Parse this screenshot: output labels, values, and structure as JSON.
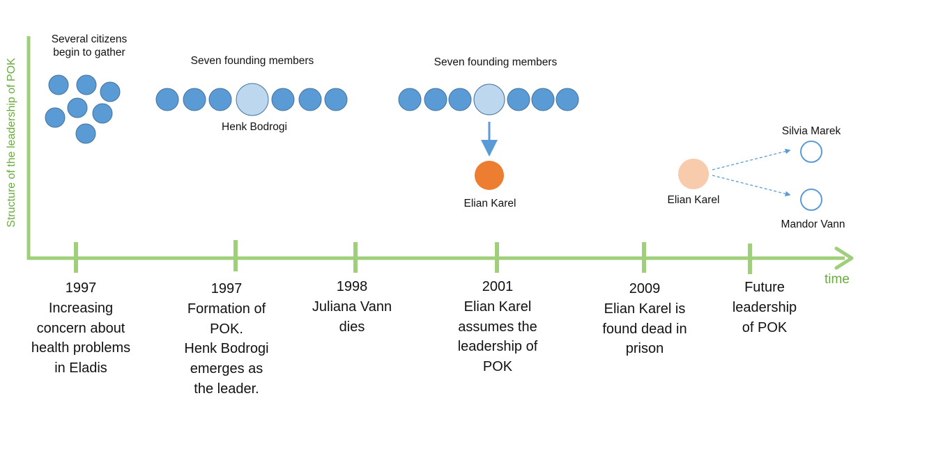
{
  "axis": {
    "y_label": "Structure of the leadership of POK",
    "x_label": "time"
  },
  "annotations": {
    "citizens": "Several citizens\nbegin to gather",
    "founders_1": "Seven founding members",
    "founders_2": "Seven founding members",
    "henk": "Henk Bodrogi",
    "elian_1": "Elian Karel",
    "elian_2": "Elian Karel",
    "silvia": "Silvia Marek",
    "mandor": "Mandor Vann"
  },
  "timeline": [
    {
      "year": "1997",
      "text": "Increasing\nconcern about\nhealth problems\nin Eladis"
    },
    {
      "year": "1997",
      "text": "Formation of\nPOK.\nHenk Bodrogi\nemerges as\nthe leader."
    },
    {
      "year": "1998",
      "text": "Juliana Vann\ndies"
    },
    {
      "year": "2001",
      "text": "Elian Karel\nassumes the\nleadership of\nPOK"
    },
    {
      "year": "2009",
      "text": "Elian Karel is\nfound dead in\nprison"
    },
    {
      "year": "",
      "text": "Future\nleadership\nof POK"
    }
  ],
  "colors": {
    "axis_green": "#9fcf7a",
    "label_green": "#6aab3f",
    "member_blue": "#5b9bd5",
    "leader_light_blue": "#bdd7ee",
    "elian_orange": "#ed7d31",
    "elian_faded": "#f8cbad"
  }
}
